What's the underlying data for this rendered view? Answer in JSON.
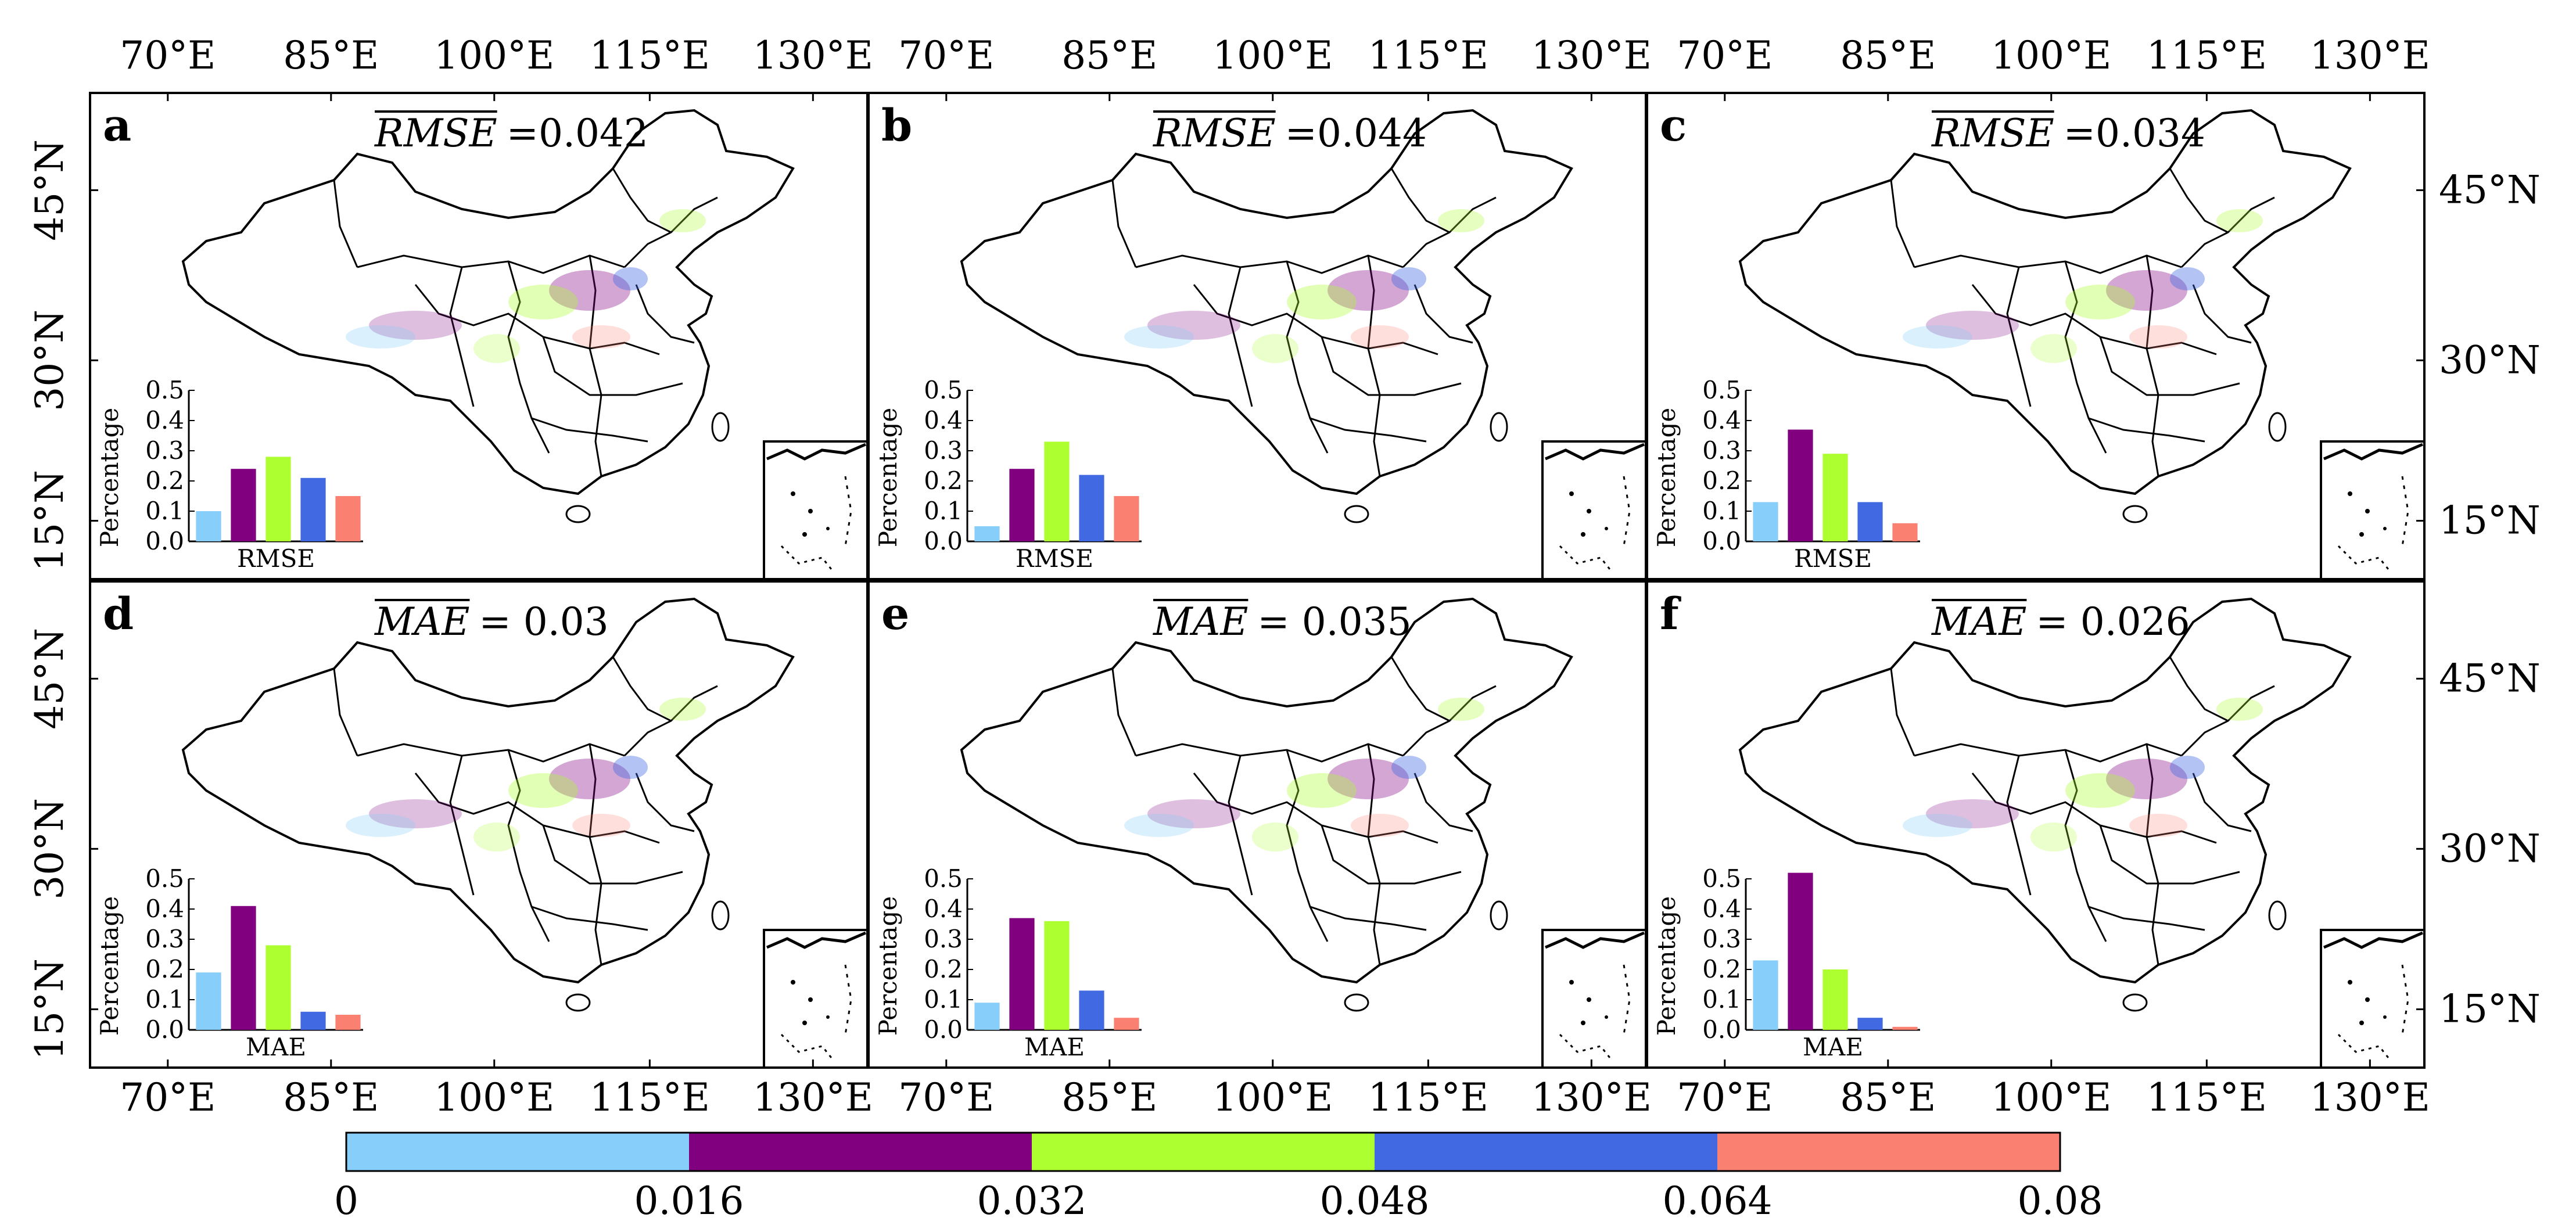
{
  "figure": {
    "lon_ticks": [
      "70°E",
      "85°E",
      "100°E",
      "115°E",
      "130°E"
    ],
    "lat_ticks": [
      "45°N",
      "30°N",
      "15°N"
    ],
    "colorbar": {
      "ticks": [
        "0",
        "0.016",
        "0.032",
        "0.048",
        "0.064",
        "0.08"
      ],
      "colors": [
        "#87cefa",
        "#800080",
        "#adff2f",
        "#4169e1",
        "#fa8072"
      ]
    }
  },
  "chart_data": [
    {
      "type": "bar",
      "panel": "a",
      "metric_symbol": "RMSE",
      "stat_value": "=0.042",
      "xlabel": "RMSE",
      "ylabel": "Percentage",
      "categories": [
        "0–0.016",
        "0.016–0.032",
        "0.032–0.048",
        "0.048–0.064",
        "0.064–0.08"
      ],
      "values": [
        0.1,
        0.24,
        0.28,
        0.21,
        0.15
      ],
      "ylim": [
        0,
        0.5
      ],
      "yticks": [
        "0.0",
        "0.1",
        "0.2",
        "0.3",
        "0.4",
        "0.5"
      ]
    },
    {
      "type": "bar",
      "panel": "b",
      "metric_symbol": "RMSE",
      "stat_value": "=0.044",
      "xlabel": "RMSE",
      "ylabel": "Percentage",
      "categories": [
        "0–0.016",
        "0.016–0.032",
        "0.032–0.048",
        "0.048–0.064",
        "0.064–0.08"
      ],
      "values": [
        0.05,
        0.24,
        0.33,
        0.22,
        0.15
      ],
      "ylim": [
        0,
        0.5
      ],
      "yticks": [
        "0.0",
        "0.1",
        "0.2",
        "0.3",
        "0.4",
        "0.5"
      ]
    },
    {
      "type": "bar",
      "panel": "c",
      "metric_symbol": "RMSE",
      "stat_value": "=0.034",
      "xlabel": "RMSE",
      "ylabel": "Percentage",
      "categories": [
        "0–0.016",
        "0.016–0.032",
        "0.032–0.048",
        "0.048–0.064",
        "0.064–0.08"
      ],
      "values": [
        0.13,
        0.37,
        0.29,
        0.13,
        0.06
      ],
      "ylim": [
        0,
        0.5
      ],
      "yticks": [
        "0.0",
        "0.1",
        "0.2",
        "0.3",
        "0.4",
        "0.5"
      ]
    },
    {
      "type": "bar",
      "panel": "d",
      "metric_symbol": "MAE",
      "stat_value": "= 0.03",
      "xlabel": "MAE",
      "ylabel": "Percentage",
      "categories": [
        "0–0.016",
        "0.016–0.032",
        "0.032–0.048",
        "0.048–0.064",
        "0.064–0.08"
      ],
      "values": [
        0.19,
        0.41,
        0.28,
        0.06,
        0.05
      ],
      "ylim": [
        0,
        0.5
      ],
      "yticks": [
        "0.0",
        "0.1",
        "0.2",
        "0.3",
        "0.4",
        "0.5"
      ]
    },
    {
      "type": "bar",
      "panel": "e",
      "metric_symbol": "MAE",
      "stat_value": "= 0.035",
      "xlabel": "MAE",
      "ylabel": "Percentage",
      "categories": [
        "0–0.016",
        "0.016–0.032",
        "0.032–0.048",
        "0.048–0.064",
        "0.064–0.08"
      ],
      "values": [
        0.09,
        0.37,
        0.36,
        0.13,
        0.04
      ],
      "ylim": [
        0,
        0.5
      ],
      "yticks": [
        "0.0",
        "0.1",
        "0.2",
        "0.3",
        "0.4",
        "0.5"
      ]
    },
    {
      "type": "bar",
      "panel": "f",
      "metric_symbol": "MAE",
      "stat_value": "= 0.026",
      "xlabel": "MAE",
      "ylabel": "Percentage",
      "categories": [
        "0–0.016",
        "0.016–0.032",
        "0.032–0.048",
        "0.048–0.064",
        "0.064–0.08"
      ],
      "values": [
        0.23,
        0.52,
        0.2,
        0.04,
        0.01
      ],
      "ylim": [
        0,
        0.5
      ],
      "yticks": [
        "0.0",
        "0.1",
        "0.2",
        "0.3",
        "0.4",
        "0.5"
      ]
    }
  ]
}
